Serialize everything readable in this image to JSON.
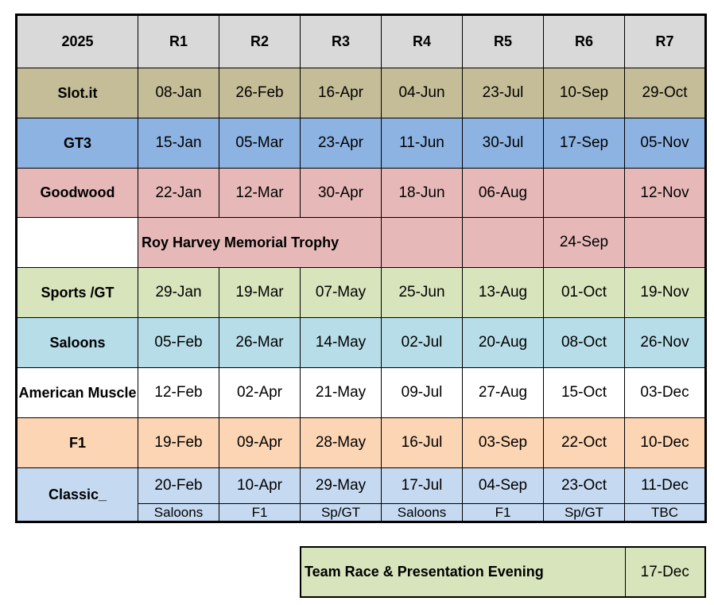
{
  "table": {
    "header": [
      "2025",
      "R1",
      "R2",
      "R3",
      "R4",
      "R5",
      "R6",
      "R7"
    ],
    "slot": {
      "label": "Slot.it",
      "dates": [
        "08-Jan",
        "26-Feb",
        "16-Apr",
        "04-Jun",
        "23-Jul",
        "10-Sep",
        "29-Oct"
      ],
      "color": "#c4bd97"
    },
    "gt3": {
      "label": "GT3",
      "dates": [
        "15-Jan",
        "05-Mar",
        "23-Apr",
        "11-Jun",
        "30-Jul",
        "17-Sep",
        "05-Nov"
      ],
      "color": "#8db3e2"
    },
    "goodwood": {
      "label": "Goodwood",
      "dates": [
        "22-Jan",
        "12-Mar",
        "30-Apr",
        "18-Jun",
        "06-Aug",
        "",
        "12-Nov"
      ],
      "color": "#e6b9b8"
    },
    "trophy": {
      "label": "Roy Harvey Memorial Trophy",
      "date": "24-Sep"
    },
    "sports": {
      "label": "Sports /GT",
      "dates": [
        "29-Jan",
        "19-Mar",
        "07-May",
        "25-Jun",
        "13-Aug",
        "01-Oct",
        "19-Nov"
      ],
      "color": "#d7e4bc"
    },
    "saloons": {
      "label": "Saloons",
      "dates": [
        "05-Feb",
        "26-Mar",
        "14-May",
        "02-Jul",
        "20-Aug",
        "08-Oct",
        "26-Nov"
      ],
      "color": "#b7dde8"
    },
    "american": {
      "label": "American Muscle",
      "dates": [
        "12-Feb",
        "02-Apr",
        "21-May",
        "09-Jul",
        "27-Aug",
        "15-Oct",
        "03-Dec"
      ],
      "color": "#ffffff"
    },
    "f1": {
      "label": "F1",
      "dates": [
        "19-Feb",
        "09-Apr",
        "28-May",
        "16-Jul",
        "03-Sep",
        "22-Oct",
        "10-Dec"
      ],
      "color": "#fcd5b4"
    },
    "classic": {
      "label": "Classic_",
      "dates": [
        "20-Feb",
        "10-Apr",
        "29-May",
        "17-Jul",
        "04-Sep",
        "23-Oct",
        "11-Dec"
      ],
      "notes": [
        "Saloons",
        "F1",
        "Sp/GT",
        "Saloons",
        "F1",
        "Sp/GT",
        "TBC"
      ],
      "color": "#c5d9f1"
    }
  },
  "team_event": {
    "label": "Team Race & Presentation Evening",
    "date": "17-Dec"
  }
}
